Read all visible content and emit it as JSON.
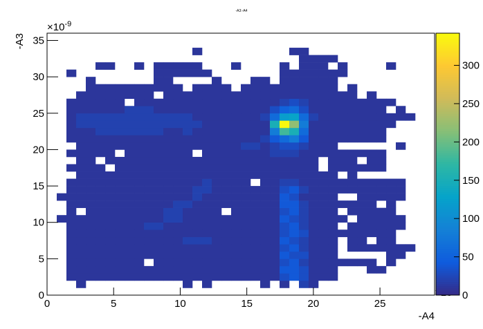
{
  "chart_data": {
    "type": "heatmap",
    "title": "-A3:-A4",
    "x_label": "-A4",
    "y_label": "-A3",
    "x_exponent": {
      "base": "×10",
      "power": "-9"
    },
    "y_exponent": {
      "base": "×10",
      "power": "-9"
    },
    "xlim": [
      0,
      29.1
    ],
    "ylim": [
      0,
      36
    ],
    "zlim": [
      0,
      342
    ],
    "xticks": [
      0,
      5,
      10,
      15,
      20,
      25
    ],
    "yticks": [
      0,
      5,
      10,
      15,
      20,
      25,
      30,
      35
    ],
    "zticks": [
      0,
      50,
      100,
      150,
      200,
      250,
      300
    ],
    "colormap": "bird",
    "z": [
      [
        0,
        0,
        0,
        0,
        0,
        0,
        0,
        0,
        0,
        0,
        0,
        0,
        0,
        0,
        0,
        0,
        0,
        0,
        0,
        0,
        0,
        0,
        0,
        0,
        0,
        0,
        0,
        0,
        0,
        0,
        0,
        0,
        0,
        0,
        0,
        0,
        0,
        0,
        0,
        0
      ],
      [
        0,
        0,
        0,
        10,
        0,
        0,
        0,
        0,
        0,
        0,
        0,
        0,
        0,
        0,
        10,
        0,
        10,
        0,
        0,
        0,
        0,
        0,
        10,
        0,
        10,
        0,
        20,
        10,
        0,
        0,
        0,
        0,
        0,
        0,
        0,
        0,
        0,
        0,
        0,
        0
      ],
      [
        0,
        0,
        10,
        10,
        10,
        10,
        10,
        10,
        10,
        10,
        10,
        10,
        10,
        10,
        10,
        10,
        10,
        10,
        10,
        10,
        10,
        10,
        10,
        10,
        30,
        40,
        30,
        10,
        10,
        10,
        0,
        0,
        0,
        0,
        0,
        0,
        0,
        0,
        0,
        0
      ],
      [
        0,
        0,
        10,
        10,
        10,
        10,
        10,
        10,
        10,
        10,
        10,
        10,
        10,
        10,
        10,
        10,
        10,
        10,
        10,
        10,
        10,
        10,
        10,
        10,
        40,
        40,
        30,
        10,
        10,
        10,
        0,
        0,
        0,
        10,
        10,
        0,
        0,
        0,
        0,
        0
      ],
      [
        0,
        0,
        10,
        10,
        10,
        10,
        10,
        10,
        10,
        10,
        0,
        10,
        10,
        10,
        10,
        10,
        10,
        10,
        10,
        10,
        10,
        10,
        10,
        10,
        30,
        40,
        20,
        10,
        10,
        10,
        10,
        10,
        10,
        10,
        0,
        10,
        0,
        0,
        0,
        0
      ],
      [
        0,
        0,
        10,
        10,
        10,
        10,
        10,
        10,
        10,
        10,
        10,
        10,
        10,
        10,
        10,
        10,
        10,
        10,
        10,
        10,
        10,
        10,
        10,
        10,
        40,
        30,
        30,
        10,
        10,
        10,
        0,
        0,
        0,
        0,
        0,
        10,
        10,
        0,
        0,
        0
      ],
      [
        0,
        0,
        10,
        10,
        10,
        10,
        10,
        10,
        10,
        10,
        10,
        10,
        10,
        10,
        10,
        10,
        10,
        10,
        10,
        10,
        10,
        10,
        10,
        10,
        30,
        40,
        20,
        10,
        10,
        10,
        0,
        10,
        10,
        10,
        10,
        10,
        10,
        10,
        0,
        0
      ],
      [
        0,
        0,
        10,
        10,
        10,
        10,
        10,
        10,
        10,
        10,
        10,
        10,
        10,
        10,
        20,
        20,
        20,
        10,
        10,
        10,
        10,
        10,
        10,
        10,
        40,
        30,
        20,
        10,
        10,
        10,
        0,
        10,
        10,
        0,
        10,
        10,
        0,
        0,
        0,
        0
      ],
      [
        0,
        0,
        10,
        10,
        10,
        10,
        10,
        10,
        10,
        10,
        10,
        10,
        10,
        10,
        10,
        10,
        10,
        10,
        10,
        10,
        10,
        10,
        10,
        10,
        30,
        40,
        30,
        10,
        10,
        10,
        10,
        10,
        10,
        10,
        10,
        10,
        0,
        0,
        0,
        0
      ],
      [
        0,
        0,
        10,
        10,
        10,
        10,
        10,
        10,
        10,
        10,
        20,
        20,
        10,
        10,
        10,
        10,
        10,
        10,
        10,
        10,
        10,
        10,
        10,
        10,
        30,
        40,
        20,
        10,
        10,
        10,
        0,
        10,
        10,
        10,
        10,
        10,
        10,
        0,
        0,
        0
      ],
      [
        0,
        10,
        10,
        10,
        10,
        10,
        10,
        10,
        10,
        10,
        10,
        10,
        20,
        20,
        10,
        10,
        10,
        10,
        10,
        10,
        10,
        10,
        10,
        10,
        40,
        30,
        20,
        10,
        10,
        10,
        10,
        0,
        10,
        10,
        10,
        10,
        10,
        0,
        0,
        0
      ],
      [
        0,
        0,
        10,
        0,
        10,
        10,
        10,
        10,
        10,
        10,
        10,
        10,
        20,
        20,
        10,
        10,
        10,
        10,
        0,
        10,
        10,
        10,
        10,
        10,
        30,
        40,
        20,
        10,
        10,
        10,
        0,
        10,
        10,
        10,
        10,
        10,
        0,
        0,
        0,
        0
      ],
      [
        0,
        0,
        10,
        10,
        10,
        10,
        10,
        10,
        10,
        10,
        10,
        10,
        10,
        20,
        20,
        10,
        10,
        10,
        10,
        10,
        10,
        10,
        10,
        10,
        40,
        40,
        20,
        10,
        10,
        10,
        10,
        10,
        10,
        10,
        0,
        10,
        0,
        0,
        0,
        0
      ],
      [
        0,
        10,
        10,
        10,
        10,
        10,
        10,
        10,
        10,
        10,
        10,
        10,
        10,
        10,
        10,
        20,
        10,
        10,
        10,
        10,
        10,
        10,
        10,
        10,
        40,
        30,
        10,
        10,
        10,
        10,
        0,
        0,
        10,
        10,
        10,
        10,
        10,
        0,
        0,
        0
      ],
      [
        0,
        0,
        10,
        10,
        10,
        10,
        10,
        10,
        10,
        10,
        10,
        10,
        10,
        10,
        10,
        20,
        20,
        10,
        10,
        10,
        10,
        10,
        10,
        10,
        30,
        40,
        20,
        10,
        10,
        10,
        10,
        10,
        10,
        10,
        10,
        10,
        10,
        0,
        0,
        0
      ],
      [
        0,
        0,
        10,
        10,
        10,
        10,
        10,
        10,
        10,
        10,
        10,
        10,
        10,
        10,
        10,
        10,
        20,
        10,
        10,
        10,
        10,
        0,
        10,
        10,
        20,
        20,
        10,
        10,
        10,
        10,
        10,
        10,
        10,
        10,
        10,
        10,
        10,
        0,
        0,
        0
      ],
      [
        0,
        0,
        0,
        10,
        10,
        10,
        10,
        10,
        10,
        10,
        10,
        10,
        10,
        10,
        10,
        10,
        10,
        10,
        10,
        10,
        10,
        10,
        10,
        10,
        10,
        10,
        10,
        10,
        10,
        10,
        0,
        10,
        0,
        0,
        0,
        0,
        0,
        0,
        0,
        0
      ],
      [
        0,
        0,
        10,
        10,
        10,
        10,
        0,
        10,
        10,
        10,
        10,
        10,
        10,
        10,
        10,
        10,
        10,
        10,
        10,
        10,
        10,
        10,
        10,
        10,
        10,
        10,
        10,
        10,
        0,
        10,
        10,
        10,
        10,
        10,
        10,
        0,
        0,
        0,
        0,
        0
      ],
      [
        0,
        0,
        0,
        10,
        10,
        0,
        10,
        10,
        10,
        10,
        10,
        10,
        10,
        10,
        10,
        10,
        10,
        10,
        10,
        10,
        10,
        10,
        10,
        10,
        10,
        10,
        10,
        10,
        0,
        10,
        10,
        10,
        0,
        10,
        10,
        0,
        0,
        0,
        0,
        0
      ],
      [
        0,
        0,
        10,
        10,
        10,
        10,
        10,
        0,
        10,
        10,
        10,
        10,
        10,
        10,
        10,
        0,
        10,
        10,
        10,
        10,
        10,
        10,
        10,
        20,
        20,
        20,
        10,
        10,
        10,
        10,
        10,
        10,
        10,
        10,
        10,
        0,
        0,
        0,
        0,
        0
      ],
      [
        0,
        0,
        0,
        10,
        10,
        10,
        10,
        10,
        10,
        10,
        10,
        10,
        10,
        10,
        10,
        10,
        10,
        10,
        10,
        10,
        20,
        20,
        10,
        20,
        30,
        30,
        20,
        10,
        10,
        10,
        0,
        0,
        0,
        0,
        0,
        0,
        10,
        0,
        0,
        0
      ],
      [
        0,
        0,
        10,
        10,
        10,
        10,
        10,
        10,
        10,
        10,
        10,
        10,
        10,
        10,
        10,
        10,
        10,
        10,
        10,
        10,
        10,
        10,
        20,
        40,
        60,
        80,
        40,
        10,
        10,
        10,
        10,
        10,
        10,
        10,
        10,
        0,
        0,
        0,
        0,
        0
      ],
      [
        0,
        0,
        10,
        10,
        10,
        20,
        20,
        20,
        20,
        20,
        20,
        20,
        10,
        10,
        20,
        10,
        10,
        10,
        10,
        10,
        10,
        10,
        10,
        80,
        180,
        150,
        60,
        10,
        10,
        10,
        10,
        10,
        10,
        10,
        10,
        0,
        0,
        0,
        0,
        0
      ],
      [
        0,
        0,
        10,
        20,
        20,
        20,
        20,
        20,
        20,
        20,
        20,
        20,
        20,
        20,
        20,
        20,
        10,
        10,
        10,
        10,
        10,
        10,
        10,
        150,
        340,
        220,
        80,
        10,
        10,
        10,
        10,
        10,
        10,
        10,
        10,
        10,
        0,
        0,
        0,
        0
      ],
      [
        0,
        0,
        10,
        20,
        20,
        20,
        20,
        20,
        20,
        20,
        20,
        20,
        20,
        20,
        20,
        10,
        10,
        10,
        10,
        10,
        10,
        10,
        20,
        60,
        120,
        130,
        60,
        20,
        10,
        10,
        10,
        10,
        10,
        10,
        10,
        10,
        10,
        10,
        0,
        0
      ],
      [
        0,
        0,
        10,
        10,
        10,
        10,
        10,
        10,
        20,
        20,
        20,
        10,
        10,
        10,
        10,
        10,
        10,
        10,
        10,
        10,
        10,
        10,
        10,
        30,
        50,
        60,
        30,
        10,
        10,
        10,
        10,
        10,
        10,
        10,
        10,
        0,
        10,
        0,
        0,
        0
      ],
      [
        0,
        0,
        10,
        10,
        10,
        10,
        10,
        10,
        0,
        10,
        10,
        10,
        10,
        10,
        10,
        10,
        10,
        10,
        10,
        10,
        10,
        10,
        10,
        10,
        20,
        30,
        20,
        10,
        10,
        10,
        10,
        10,
        10,
        10,
        10,
        10,
        0,
        0,
        0,
        0
      ],
      [
        0,
        0,
        0,
        10,
        10,
        10,
        10,
        10,
        10,
        10,
        10,
        0,
        10,
        10,
        10,
        10,
        10,
        10,
        10,
        10,
        10,
        10,
        10,
        10,
        10,
        10,
        10,
        10,
        10,
        10,
        10,
        10,
        0,
        10,
        0,
        0,
        0,
        0,
        0,
        0
      ],
      [
        0,
        0,
        0,
        0,
        10,
        10,
        10,
        10,
        10,
        10,
        10,
        10,
        10,
        10,
        0,
        10,
        10,
        10,
        10,
        0,
        10,
        10,
        10,
        10,
        10,
        10,
        10,
        10,
        10,
        10,
        0,
        10,
        0,
        0,
        0,
        0,
        0,
        0,
        0,
        0
      ],
      [
        0,
        0,
        0,
        0,
        10,
        0,
        0,
        0,
        0,
        0,
        0,
        10,
        10,
        0,
        0,
        0,
        0,
        10,
        0,
        0,
        0,
        10,
        10,
        0,
        10,
        10,
        10,
        10,
        10,
        10,
        0,
        0,
        0,
        0,
        0,
        0,
        0,
        0,
        0,
        0
      ],
      [
        0,
        0,
        10,
        0,
        0,
        0,
        0,
        0,
        0,
        0,
        0,
        10,
        10,
        10,
        10,
        10,
        10,
        0,
        0,
        0,
        0,
        0,
        0,
        0,
        10,
        10,
        10,
        10,
        10,
        10,
        10,
        0,
        0,
        0,
        0,
        0,
        0,
        0,
        0,
        0
      ],
      [
        0,
        0,
        0,
        0,
        0,
        10,
        10,
        0,
        0,
        10,
        0,
        10,
        10,
        10,
        10,
        10,
        0,
        0,
        0,
        10,
        0,
        0,
        0,
        0,
        10,
        0,
        10,
        10,
        10,
        0,
        10,
        0,
        0,
        0,
        0,
        10,
        0,
        0,
        0,
        0
      ],
      [
        0,
        0,
        0,
        0,
        0,
        0,
        0,
        0,
        0,
        0,
        0,
        0,
        0,
        0,
        0,
        0,
        0,
        0,
        0,
        0,
        0,
        0,
        0,
        0,
        0,
        0,
        10,
        10,
        10,
        10,
        0,
        0,
        0,
        0,
        0,
        0,
        0,
        0,
        0,
        0
      ],
      [
        0,
        0,
        0,
        0,
        0,
        0,
        0,
        0,
        0,
        0,
        0,
        0,
        0,
        0,
        0,
        10,
        0,
        0,
        0,
        0,
        0,
        0,
        0,
        0,
        0,
        10,
        10,
        0,
        0,
        0,
        0,
        0,
        0,
        0,
        0,
        0,
        0,
        0,
        0,
        0
      ],
      [
        0,
        0,
        0,
        0,
        0,
        0,
        0,
        0,
        0,
        0,
        0,
        0,
        0,
        0,
        0,
        0,
        0,
        0,
        0,
        0,
        0,
        0,
        0,
        0,
        0,
        0,
        0,
        0,
        0,
        0,
        0,
        0,
        0,
        0,
        0,
        0,
        0,
        0,
        0,
        0
      ],
      [
        0,
        0,
        0,
        0,
        0,
        0,
        0,
        0,
        0,
        0,
        0,
        0,
        0,
        0,
        0,
        0,
        0,
        0,
        0,
        0,
        0,
        0,
        0,
        0,
        0,
        0,
        0,
        0,
        0,
        0,
        0,
        0,
        0,
        0,
        0,
        0,
        0,
        0,
        0,
        0
      ]
    ]
  }
}
